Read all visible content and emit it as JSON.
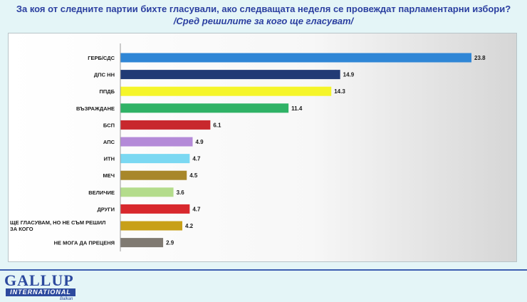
{
  "header": {
    "title": "За коя от следните партии бихте  гласували,  ако следващата неделя се провеждат парламентарни избори?",
    "subtitle": "/Сред решилите за кого ще гласуват/"
  },
  "logo": {
    "name": "GALLUP",
    "sub": "INTERNATIONAL",
    "region": "Balkan"
  },
  "chart_data": {
    "type": "bar",
    "orientation": "horizontal",
    "categories": [
      "ГЕРБ/СДС",
      "ДПС НН",
      "ППДБ",
      "ВЪЗРАЖДАНЕ",
      "БСП",
      "АПС",
      "ИТН",
      "МЕЧ",
      "ВЕЛИЧИЕ",
      "ДРУГИ",
      "ЩЕ ГЛАСУВАМ, НО НЕ СЪМ РЕШИЛ ЗА КОГО",
      "НЕ МОГА ДА ПРЕЦЕНЯ"
    ],
    "values": [
      23.8,
      14.9,
      14.3,
      11.4,
      6.1,
      4.9,
      4.7,
      4.5,
      3.6,
      4.7,
      4.2,
      2.9
    ],
    "value_labels": [
      "23.8",
      "14.9",
      "14.3",
      "11.4",
      "6.1",
      "4.9",
      "4.7",
      "4.5",
      "3.6",
      "4.7",
      "4.2",
      "2.9"
    ],
    "colors": [
      "#2f86d6",
      "#213a75",
      "#f5f52a",
      "#2fb266",
      "#c8282d",
      "#b48ad8",
      "#7bd8f2",
      "#a8872a",
      "#b4dc8c",
      "#d8282d",
      "#c8a018",
      "#807a72"
    ],
    "xlim": [
      0,
      25
    ],
    "grid": false,
    "legend": "none"
  }
}
